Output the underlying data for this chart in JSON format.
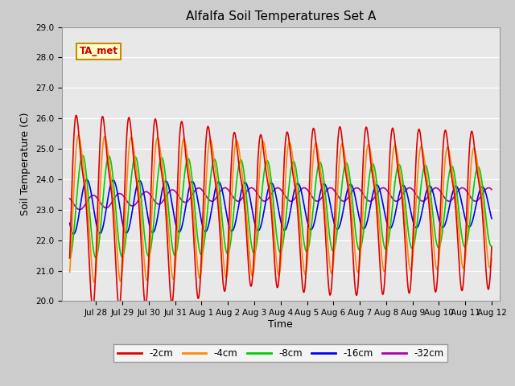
{
  "title": "Alfalfa Soil Temperatures Set A",
  "ylabel": "Soil Temperature (C)",
  "xlabel": "Time",
  "annotation": "TA_met",
  "ylim": [
    20.0,
    29.0
  ],
  "yticks": [
    20.0,
    21.0,
    22.0,
    23.0,
    24.0,
    25.0,
    26.0,
    27.0,
    28.0,
    29.0
  ],
  "colors": {
    "-2cm": "#dd0000",
    "-4cm": "#ff8800",
    "-8cm": "#00cc00",
    "-16cm": "#0000ee",
    "-32cm": "#aa00aa"
  },
  "legend_labels": [
    "-2cm",
    "-4cm",
    "-8cm",
    "-16cm",
    "-32cm"
  ],
  "fig_bg": "#cccccc",
  "plot_bg": "#e8e8e8",
  "title_fontsize": 11,
  "label_fontsize": 9,
  "tick_fontsize": 7.5,
  "line_width": 1.2
}
